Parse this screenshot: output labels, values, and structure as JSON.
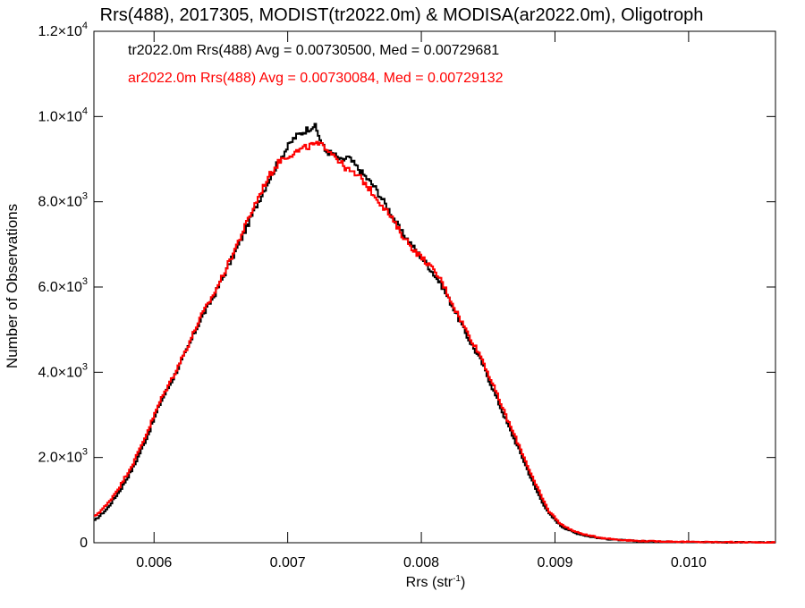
{
  "chart_data": {
    "type": "line",
    "title": "Rrs(488), 2017305, MODIST(tr2022.0m) & MODISA(ar2022.0m), Oligotroph",
    "xlabel_main": "Rrs (str",
    "xlabel_sup": "-1",
    "xlabel_tail": ")",
    "ylabel": "Number of Observations",
    "xlim": [
      0.00555,
      0.01065
    ],
    "ylim": [
      0,
      12000
    ],
    "x_ticks": [
      {
        "value": 0.006,
        "label": "0.006"
      },
      {
        "value": 0.007,
        "label": "0.007"
      },
      {
        "value": 0.008,
        "label": "0.008"
      },
      {
        "value": 0.009,
        "label": "0.009"
      },
      {
        "value": 0.01,
        "label": "0.010"
      }
    ],
    "y_ticks": [
      {
        "value": 0,
        "mant": "0",
        "exp": ""
      },
      {
        "value": 2000,
        "mant": "2.0×10",
        "exp": "3"
      },
      {
        "value": 4000,
        "mant": "4.0×10",
        "exp": "3"
      },
      {
        "value": 6000,
        "mant": "6.0×10",
        "exp": "3"
      },
      {
        "value": 8000,
        "mant": "8.0×10",
        "exp": "3"
      },
      {
        "value": 10000,
        "mant": "1.0×10",
        "exp": "4"
      },
      {
        "value": 12000,
        "mant": "1.2×10",
        "exp": "4"
      }
    ],
    "annotations": [
      {
        "text": "tr2022.0m Rrs(488) Avg = 0.00730500, Med = 0.00729681",
        "color": "#000000"
      },
      {
        "text": "ar2022.0m Rrs(488) Avg = 0.00730084, Med = 0.00729132",
        "color": "#ff0000"
      }
    ],
    "grid": false,
    "legend": "none",
    "step": true,
    "series": [
      {
        "color": "#000000",
        "x": [
          0.00555,
          0.00565,
          0.00575,
          0.00585,
          0.00595,
          0.00605,
          0.00615,
          0.00625,
          0.00635,
          0.00645,
          0.00655,
          0.00665,
          0.00675,
          0.00685,
          0.00695,
          0.00705,
          0.00712,
          0.0072,
          0.00728,
          0.00735,
          0.0074,
          0.00745,
          0.00755,
          0.00765,
          0.00775,
          0.00785,
          0.00795,
          0.00805,
          0.00815,
          0.00825,
          0.00835,
          0.00845,
          0.00855,
          0.00865,
          0.00875,
          0.00885,
          0.00895,
          0.00905,
          0.00915,
          0.00925,
          0.00935,
          0.00945,
          0.00955,
          0.00965,
          0.00985,
          0.01005,
          0.01035,
          0.01065
        ],
        "values": [
          500,
          800,
          1250,
          1800,
          2500,
          3300,
          3900,
          4550,
          5250,
          5800,
          6450,
          7100,
          7800,
          8450,
          9050,
          9500,
          9650,
          9800,
          9200,
          9100,
          8950,
          9050,
          8700,
          8350,
          7850,
          7300,
          6900,
          6500,
          6050,
          5450,
          4800,
          4250,
          3500,
          2750,
          2050,
          1300,
          700,
          380,
          230,
          150,
          100,
          70,
          50,
          35,
          25,
          15,
          10,
          5
        ]
      },
      {
        "color": "#ff0000",
        "x": [
          0.00555,
          0.00565,
          0.00575,
          0.00585,
          0.00595,
          0.00605,
          0.00615,
          0.00625,
          0.00635,
          0.00645,
          0.00655,
          0.00665,
          0.00675,
          0.00685,
          0.00695,
          0.00705,
          0.00712,
          0.0072,
          0.00728,
          0.00735,
          0.0074,
          0.00745,
          0.00755,
          0.00765,
          0.00775,
          0.00785,
          0.00795,
          0.00805,
          0.00815,
          0.00825,
          0.00835,
          0.00845,
          0.00855,
          0.00865,
          0.00875,
          0.00885,
          0.00895,
          0.00905,
          0.00915,
          0.00925,
          0.00935,
          0.00945,
          0.00955,
          0.00965,
          0.00985,
          0.01005,
          0.01035,
          0.01065
        ],
        "values": [
          600,
          900,
          1350,
          1900,
          2600,
          3350,
          3950,
          4600,
          5300,
          5850,
          6500,
          7200,
          7900,
          8550,
          9000,
          9150,
          9250,
          9350,
          9300,
          9100,
          8900,
          8750,
          8550,
          8150,
          7750,
          7250,
          6850,
          6550,
          6150,
          5500,
          4900,
          4350,
          3600,
          2850,
          2150,
          1400,
          760,
          420,
          260,
          170,
          115,
          80,
          55,
          40,
          28,
          18,
          12,
          6
        ]
      }
    ]
  }
}
